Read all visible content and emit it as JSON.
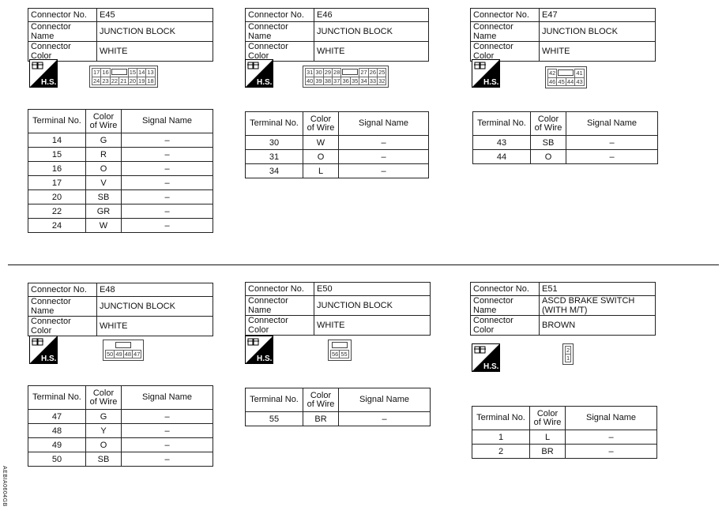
{
  "labels": {
    "connector_no": "Connector No.",
    "connector_name": "Connector Name",
    "connector_color": "Connector Color",
    "terminal_no": "Terminal No.",
    "color_of_wire": "Color of Wire",
    "signal_name": "Signal Name",
    "hs_icon_text": "H.S."
  },
  "connectors": [
    {
      "no": "E45",
      "name": "JUNCTION BLOCK",
      "color": "WHITE",
      "face": {
        "top": [
          "17",
          "16",
          "[]",
          "15",
          "14",
          "13"
        ],
        "bottom": [
          "24",
          "23",
          "22",
          "21",
          "20",
          "19",
          "18"
        ]
      },
      "rows": [
        [
          "14",
          "G",
          "–"
        ],
        [
          "15",
          "R",
          "–"
        ],
        [
          "16",
          "O",
          "–"
        ],
        [
          "17",
          "V",
          "–"
        ],
        [
          "20",
          "SB",
          "–"
        ],
        [
          "22",
          "GR",
          "–"
        ],
        [
          "24",
          "W",
          "–"
        ]
      ]
    },
    {
      "no": "E46",
      "name": "JUNCTION BLOCK",
      "color": "WHITE",
      "face": {
        "top": [
          "31",
          "30",
          "29",
          "28",
          "[]",
          "27",
          "26",
          "25"
        ],
        "bottom": [
          "40",
          "39",
          "38",
          "37",
          "36",
          "35",
          "34",
          "33",
          "32"
        ]
      },
      "rows": [
        [
          "30",
          "W",
          "–"
        ],
        [
          "31",
          "O",
          "–"
        ],
        [
          "34",
          "L",
          "–"
        ]
      ]
    },
    {
      "no": "E47",
      "name": "JUNCTION BLOCK",
      "color": "WHITE",
      "face": {
        "top": [
          "42",
          "[]",
          "41"
        ],
        "bottom": [
          "46",
          "45",
          "44",
          "43"
        ]
      },
      "rows": [
        [
          "43",
          "SB",
          "–"
        ],
        [
          "44",
          "O",
          "–"
        ]
      ]
    },
    {
      "no": "E48",
      "name": "JUNCTION BLOCK",
      "color": "WHITE",
      "face": {
        "top": [
          "[]"
        ],
        "bottom": [
          "50",
          "49",
          "48",
          "47"
        ]
      },
      "rows": [
        [
          "47",
          "G",
          "–"
        ],
        [
          "48",
          "Y",
          "–"
        ],
        [
          "49",
          "O",
          "–"
        ],
        [
          "50",
          "SB",
          "–"
        ]
      ]
    },
    {
      "no": "E50",
      "name": "JUNCTION BLOCK",
      "color": "WHITE",
      "face": {
        "top": [
          "[]"
        ],
        "bottom": [
          "56",
          "55"
        ]
      },
      "rows": [
        [
          "55",
          "BR",
          "–"
        ]
      ]
    },
    {
      "no": "E51",
      "name": "ASCD BRAKE SWITCH (WITH M/T)",
      "color": "BROWN",
      "face": {
        "top": [
          "2"
        ],
        "bottom": [
          "1"
        ]
      },
      "rows": [
        [
          "1",
          "L",
          "–"
        ],
        [
          "2",
          "BR",
          "–"
        ]
      ]
    }
  ],
  "figure_code": "AEBIA0604GB"
}
